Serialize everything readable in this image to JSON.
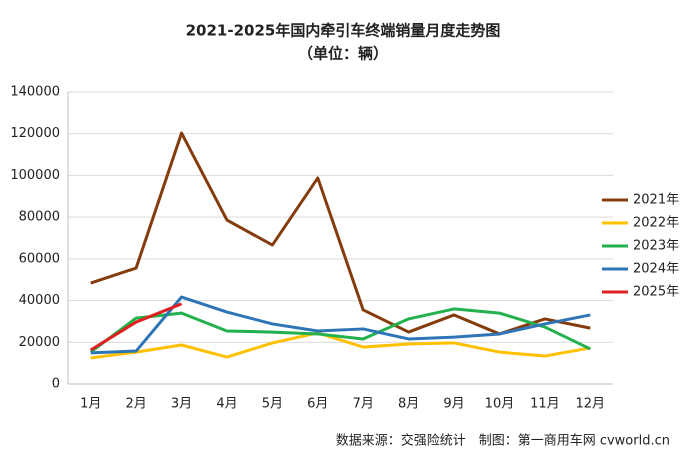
{
  "chart_data": {
    "type": "line",
    "title": "2021-2025年国内牵引车终端销量月度走势图",
    "subtitle": "（单位：辆）",
    "source": "数据来源：交强险统计　制图：第一商用车网 cvworld.cn",
    "categories": [
      "1月",
      "2月",
      "3月",
      "4月",
      "5月",
      "6月",
      "7月",
      "8月",
      "9月",
      "10月",
      "11月",
      "12月"
    ],
    "series": [
      {
        "name": "2021年",
        "color": "#843c0c",
        "values": [
          48400,
          55600,
          120300,
          78600,
          66600,
          98800,
          35500,
          24900,
          33100,
          24000,
          31200,
          26800
        ]
      },
      {
        "name": "2022年",
        "color": "#ffc000",
        "values": [
          12500,
          15300,
          18700,
          12900,
          19700,
          24500,
          17700,
          19200,
          19700,
          15300,
          13400,
          17300
        ]
      },
      {
        "name": "2023年",
        "color": "#22b14c",
        "values": [
          15300,
          31600,
          34000,
          25400,
          24900,
          24000,
          21600,
          31200,
          36000,
          34000,
          27300,
          16800
        ]
      },
      {
        "name": "2024年",
        "color": "#2e75b6",
        "values": [
          14900,
          15800,
          41700,
          34500,
          28800,
          25400,
          26400,
          21600,
          22500,
          24000,
          28800,
          33100
        ]
      },
      {
        "name": "2025年",
        "color": "#e02020",
        "values": [
          16300,
          29700,
          38400,
          null,
          null,
          null,
          null,
          null,
          null,
          null,
          null,
          null
        ]
      }
    ],
    "ylim": [
      0,
      140000
    ],
    "yticks": [
      0,
      20000,
      40000,
      60000,
      80000,
      100000,
      120000,
      140000
    ],
    "grid": true,
    "legend": "right"
  }
}
